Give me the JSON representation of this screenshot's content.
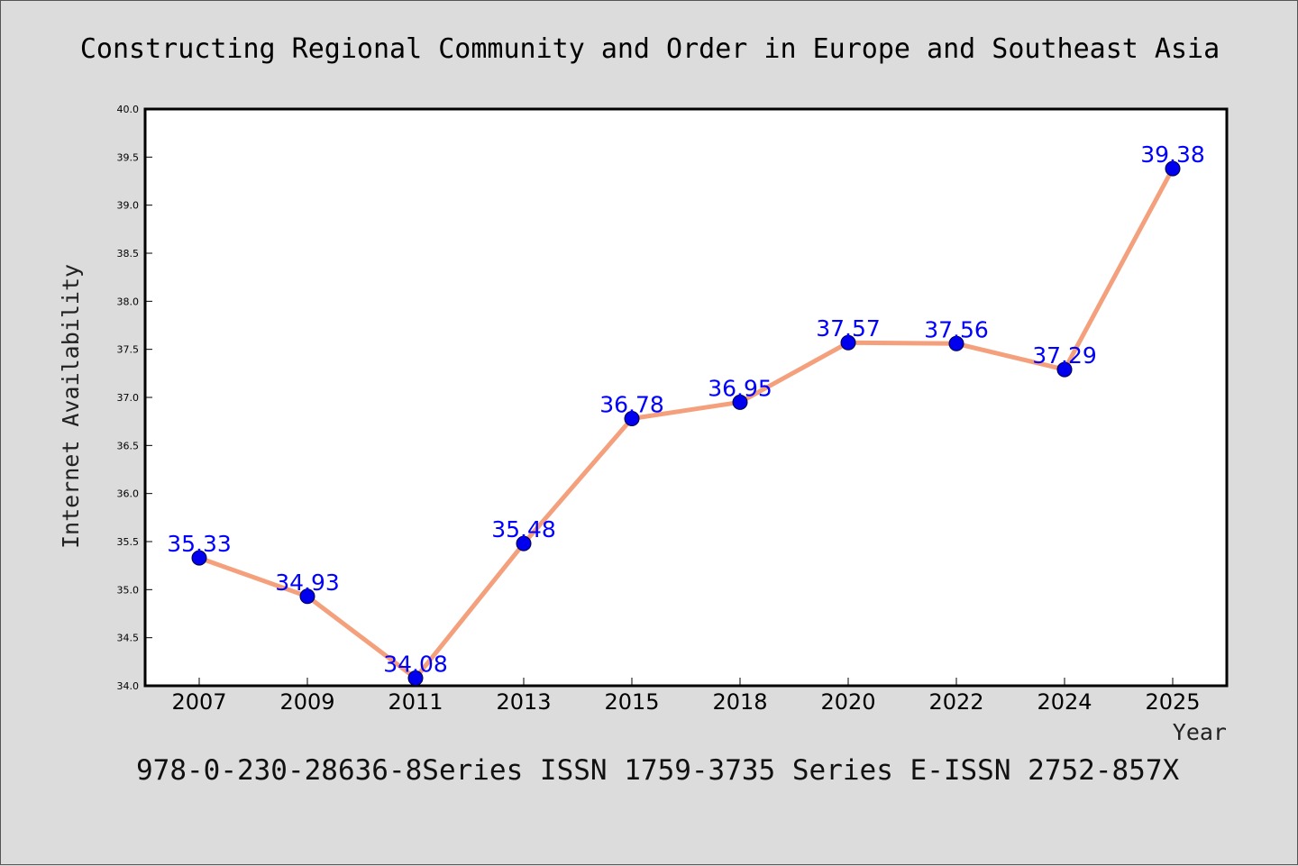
{
  "chart_data": {
    "type": "line",
    "title": "Constructing Regional Community and Order in Europe and Southeast Asia",
    "xlabel": "Year",
    "ylabel": "Internet Availability",
    "categories": [
      "2007",
      "2009",
      "2011",
      "2013",
      "2015",
      "2018",
      "2020",
      "2022",
      "2024",
      "2025"
    ],
    "series": [
      {
        "values": [
          35.33,
          34.93,
          34.08,
          35.48,
          36.78,
          36.95,
          37.57,
          37.56,
          37.29,
          39.38
        ]
      }
    ],
    "data_labels": [
      "35.33",
      "34.93",
      "34.08",
      "35.48",
      "36.78",
      "36.95",
      "37.57",
      "37.56",
      "37.29",
      "39.38"
    ],
    "ylim": [
      34.0,
      40.0
    ],
    "yticks": [
      "34.0",
      "34.5",
      "35.0",
      "35.5",
      "36.0",
      "36.5",
      "37.0",
      "37.5",
      "38.0",
      "38.5",
      "39.0",
      "39.5",
      "40.0"
    ],
    "grid": false,
    "legend": "none",
    "colors": {
      "line": "#f4a07c",
      "marker": "#0000ee",
      "label": "#0000ff",
      "background": "#dcdcdc",
      "plot_background": "#ffffff"
    }
  },
  "footer": "978-0-230-28636-8Series ISSN 1759-3735 Series E-ISSN 2752-857X"
}
